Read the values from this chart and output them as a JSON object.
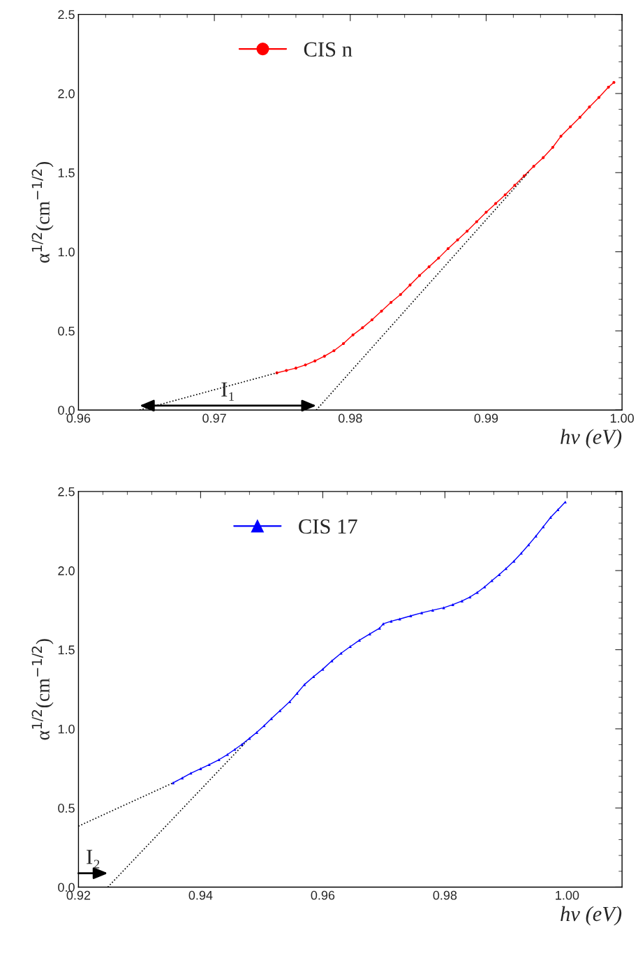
{
  "chart_data": [
    {
      "type": "line",
      "xlabel": "hv (eV)",
      "ylabel": "α$^{1/2}$(cm$^{−1/2}$)",
      "legend": "top",
      "grid": false,
      "xlim": [
        0.96,
        1.0
      ],
      "xticks": [
        0.96,
        0.97,
        0.98,
        0.99,
        {
          "value": 1.0,
          "label": "1.00"
        }
      ],
      "ylim": [
        0,
        2.5
      ],
      "yticks": [
        {
          "value": 0,
          "label": "0.0"
        },
        0.5,
        {
          "value": 1,
          "label": "1.0"
        },
        1.5,
        {
          "value": 2,
          "label": "2.0"
        },
        2.5
      ],
      "annotations": [
        "I₁"
      ],
      "series": [
        {
          "name": "CIS n",
          "color": "#ff0000",
          "marker": "circle",
          "line_style": "solid",
          "x": [
            0.9746,
            0.9753,
            0.976,
            0.9767,
            0.9774,
            0.9781,
            0.9788,
            0.9795,
            0.9802,
            0.9809,
            0.9816,
            0.9823,
            0.983,
            0.9837,
            0.9844,
            0.9851,
            0.9858,
            0.9865,
            0.9872,
            0.9879,
            0.9886,
            0.9893,
            0.99,
            0.9907,
            0.9914,
            0.9921,
            0.9928,
            0.9935,
            0.9942,
            0.9949,
            0.9955,
            0.9962,
            0.9969,
            0.9976,
            0.9983,
            0.999,
            0.9994
          ],
          "values": [
            0.235,
            0.25,
            0.265,
            0.285,
            0.31,
            0.34,
            0.375,
            0.42,
            0.475,
            0.52,
            0.57,
            0.625,
            0.68,
            0.73,
            0.79,
            0.85,
            0.905,
            0.96,
            1.02,
            1.075,
            1.13,
            1.19,
            1.25,
            1.305,
            1.36,
            1.42,
            1.48,
            1.54,
            1.595,
            1.66,
            1.73,
            1.79,
            1.85,
            1.915,
            1.975,
            2.04,
            2.07
          ]
        },
        {
          "color": "#000000",
          "marker": "none",
          "line_style": "dotted",
          "x": [
            0.9645,
            0.9746
          ],
          "values": [
            0.0,
            0.235
          ]
        },
        {
          "color": "#000000",
          "marker": "none",
          "line_style": "dotted",
          "x": [
            0.9775,
            0.9932
          ],
          "values": [
            0.0,
            1.51
          ]
        }
      ]
    },
    {
      "type": "line",
      "xlabel": "hv (eV)",
      "ylabel": "α$^{1/2}$(cm$^{−1/2}$)",
      "legend": "top",
      "grid": false,
      "xlim": [
        0.92,
        1.009
      ],
      "xticks": [
        0.92,
        0.94,
        0.96,
        0.98,
        {
          "value": 1.0,
          "label": "1.00"
        }
      ],
      "ylim": [
        0,
        2.5
      ],
      "yticks": [
        {
          "value": 0,
          "label": "0.0"
        },
        0.5,
        {
          "value": 1,
          "label": "1.0"
        },
        1.5,
        {
          "value": 2,
          "label": "2.0"
        },
        2.5
      ],
      "annotations": [
        "I₂"
      ],
      "series": [
        {
          "name": "CIS 17",
          "color": "#0000ff",
          "marker": "triangle",
          "line_style": "solid",
          "x": [
            0.9355,
            0.937,
            0.9384,
            0.94,
            0.9414,
            0.943,
            0.9444,
            0.9456,
            0.9468,
            0.948,
            0.9492,
            0.9504,
            0.9516,
            0.953,
            0.9546,
            0.9558,
            0.957,
            0.9585,
            0.96,
            0.9615,
            0.963,
            0.9645,
            0.966,
            0.9677,
            0.9693,
            0.9699,
            0.9712,
            0.9726,
            0.9744,
            0.9762,
            0.978,
            0.9798,
            0.9813,
            0.9828,
            0.9841,
            0.9853,
            0.9865,
            0.9877,
            0.9889,
            0.99,
            0.9913,
            0.9925,
            0.9937,
            0.9949,
            0.9961,
            0.9973,
            0.9985,
            0.9997
          ],
          "values": [
            0.659,
            0.69,
            0.72,
            0.748,
            0.774,
            0.805,
            0.838,
            0.87,
            0.903,
            0.94,
            0.978,
            1.02,
            1.065,
            1.115,
            1.172,
            1.225,
            1.28,
            1.33,
            1.377,
            1.43,
            1.478,
            1.52,
            1.56,
            1.6,
            1.636,
            1.664,
            1.68,
            1.694,
            1.714,
            1.733,
            1.75,
            1.765,
            1.785,
            1.808,
            1.833,
            1.862,
            1.897,
            1.937,
            1.975,
            2.013,
            2.06,
            2.11,
            2.163,
            2.218,
            2.277,
            2.336,
            2.385,
            2.433
          ]
        },
        {
          "color": "#000000",
          "marker": "none",
          "line_style": "dotted",
          "x": [
            0.92,
            0.9355
          ],
          "values": [
            0.385,
            0.659
          ]
        },
        {
          "color": "#000000",
          "marker": "none",
          "line_style": "dotted",
          "x": [
            0.9248,
            0.9475
          ],
          "values": [
            0.0,
            0.92
          ]
        }
      ]
    }
  ]
}
